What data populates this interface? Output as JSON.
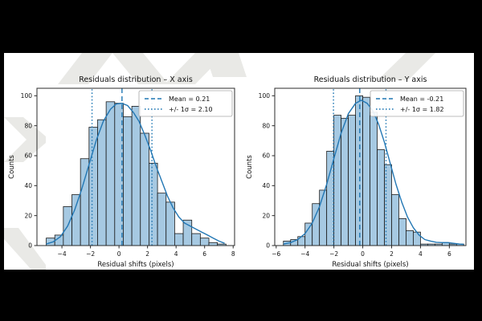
{
  "figure": {
    "background_color": "#000000",
    "band_color": "#ffffff",
    "watermark_color": "#e9e9e6"
  },
  "colors": {
    "bar_fill": "#a6c9e2",
    "bar_edge": "#1a1a1a",
    "curve": "#2277b4",
    "vline": "#1f77b4",
    "spine": "#2b2b2b",
    "text": "#111111",
    "legend_border": "#a6a6a6"
  },
  "chart_data": [
    {
      "type": "bar",
      "subtype": "histogram-with-kde",
      "title": "Residuals distribution – X axis",
      "xlabel": "Residual shifts (pixels)",
      "ylabel": "Counts",
      "legend": [
        {
          "label": "Mean = 0.21",
          "style": "dashed"
        },
        {
          "label": "+/- 1σ = 2.10",
          "style": "dotted"
        }
      ],
      "mean": 0.21,
      "sigma": 2.1,
      "xlim": [
        -5.75,
        8.1
      ],
      "ylim": [
        0,
        105
      ],
      "xticks": [
        -4,
        -2,
        0,
        2,
        4,
        6,
        8
      ],
      "yticks": [
        0,
        20,
        40,
        60,
        80,
        100
      ],
      "grid": false,
      "legend_position": "upper-right",
      "bin_start": -5.1,
      "bin_width": 0.6,
      "counts": [
        5,
        7,
        26,
        34,
        58,
        79,
        84,
        96,
        95,
        86,
        93,
        75,
        55,
        35,
        29,
        8,
        17,
        8,
        5,
        2,
        1
      ],
      "kde_curve": [
        [
          -5.1,
          1
        ],
        [
          -4.6,
          2.5
        ],
        [
          -4.1,
          6
        ],
        [
          -3.6,
          13
        ],
        [
          -3.1,
          24
        ],
        [
          -2.6,
          38
        ],
        [
          -2.1,
          54
        ],
        [
          -1.6,
          70
        ],
        [
          -1.1,
          83
        ],
        [
          -0.6,
          91
        ],
        [
          -0.2,
          94.5
        ],
        [
          0.2,
          95
        ],
        [
          0.6,
          93.5
        ],
        [
          1.0,
          89
        ],
        [
          1.4,
          83
        ],
        [
          1.8,
          74
        ],
        [
          2.2,
          64
        ],
        [
          2.6,
          53
        ],
        [
          3.0,
          43
        ],
        [
          3.4,
          33
        ],
        [
          3.8,
          25
        ],
        [
          4.2,
          19
        ],
        [
          4.6,
          15
        ],
        [
          5.0,
          13
        ],
        [
          5.4,
          11
        ],
        [
          5.8,
          9
        ],
        [
          6.2,
          7
        ],
        [
          6.6,
          5
        ],
        [
          7.0,
          3
        ],
        [
          7.4,
          1.5
        ]
      ]
    },
    {
      "type": "bar",
      "subtype": "histogram-with-kde",
      "title": "Residuals distribution – Y axis",
      "xlabel": "Residual shifts (pixels)",
      "ylabel": "Counts",
      "legend": [
        {
          "label": "Mean = -0.21",
          "style": "dashed"
        },
        {
          "label": "+/- 1σ = 1.82",
          "style": "dotted"
        }
      ],
      "mean": -0.21,
      "sigma": 1.82,
      "xlim": [
        -6.1,
        7.15
      ],
      "ylim": [
        0,
        105
      ],
      "xticks": [
        -6,
        -4,
        -2,
        0,
        2,
        4,
        6
      ],
      "yticks": [
        0,
        20,
        40,
        60,
        80,
        100
      ],
      "grid": false,
      "legend_position": "upper-right",
      "bin_start": -5.5,
      "bin_width": 0.5,
      "counts": [
        3,
        4,
        6,
        15,
        28,
        37,
        63,
        87,
        85,
        87,
        100,
        99,
        89,
        64,
        54,
        34,
        18,
        10,
        9,
        1,
        1,
        1,
        2,
        1,
        1
      ],
      "kde_curve": [
        [
          -5.5,
          1
        ],
        [
          -5.0,
          2
        ],
        [
          -4.5,
          4
        ],
        [
          -4.0,
          8
        ],
        [
          -3.5,
          15
        ],
        [
          -3.0,
          26
        ],
        [
          -2.5,
          41
        ],
        [
          -2.0,
          58
        ],
        [
          -1.5,
          75
        ],
        [
          -1.0,
          88
        ],
        [
          -0.5,
          95
        ],
        [
          -0.1,
          97
        ],
        [
          0.3,
          95
        ],
        [
          0.7,
          90
        ],
        [
          1.1,
          81
        ],
        [
          1.5,
          69
        ],
        [
          1.9,
          55
        ],
        [
          2.3,
          41
        ],
        [
          2.7,
          29
        ],
        [
          3.1,
          19
        ],
        [
          3.5,
          12
        ],
        [
          3.9,
          7
        ],
        [
          4.3,
          4
        ],
        [
          4.7,
          3
        ],
        [
          5.1,
          2.2
        ],
        [
          5.5,
          2
        ],
        [
          5.9,
          2
        ],
        [
          6.3,
          1.5
        ],
        [
          6.7,
          1
        ],
        [
          7.0,
          0.8
        ]
      ]
    }
  ]
}
